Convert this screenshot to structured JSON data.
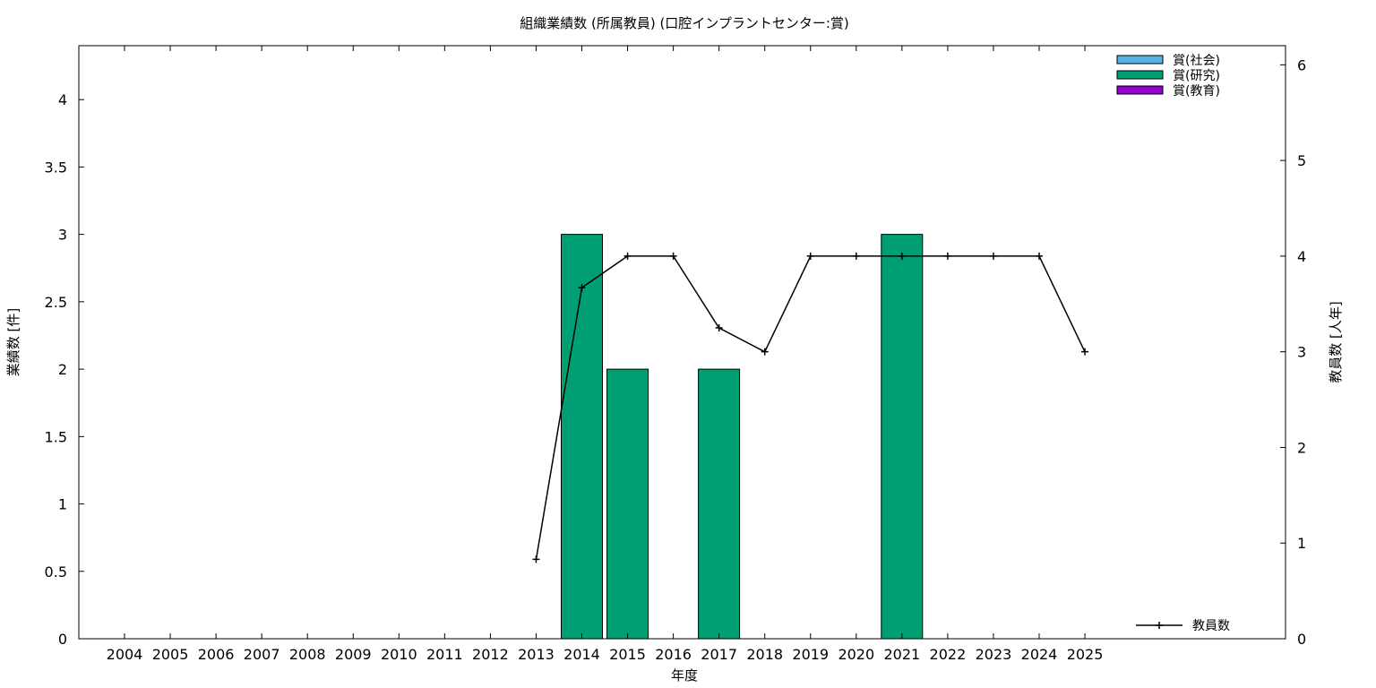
{
  "chart_data": {
    "type": "bar",
    "title": "組織業績数 (所属教員) (口腔インプラントセンター:賞)",
    "xlabel": "年度",
    "ylabel": "業績数 [件]",
    "y2label": "教員数 [人年]",
    "categories": [
      "2004",
      "2005",
      "2006",
      "2007",
      "2008",
      "2009",
      "2010",
      "2011",
      "2012",
      "2013",
      "2014",
      "2015",
      "2016",
      "2017",
      "2018",
      "2019",
      "2020",
      "2021",
      "2022",
      "2023",
      "2024",
      "2025"
    ],
    "ylim": [
      0,
      4.4
    ],
    "yticks": [
      0,
      0.5,
      1,
      1.5,
      2,
      2.5,
      3,
      3.5,
      4
    ],
    "ytick_labels": [
      "0",
      "0.5",
      "1",
      "1.5",
      "2",
      "2.5",
      "3",
      "3.5",
      "4"
    ],
    "y2lim": [
      0,
      6.2
    ],
    "y2ticks": [
      0,
      1,
      2,
      3,
      4,
      5,
      6
    ],
    "y2tick_labels": [
      "0",
      "1",
      "2",
      "3",
      "4",
      "5",
      "6"
    ],
    "grid": false,
    "legend_placement": "top-right",
    "bar_series": [
      {
        "name": "賞(社会)",
        "color": "#56b4e9",
        "values": [
          0,
          0,
          0,
          0,
          0,
          0,
          0,
          0,
          0,
          0,
          0,
          0,
          0,
          0,
          0,
          0,
          0,
          0,
          0,
          0,
          0,
          0
        ]
      },
      {
        "name": "賞(研究)",
        "color": "#009e73",
        "values": [
          0,
          0,
          0,
          0,
          0,
          0,
          0,
          0,
          0,
          0,
          3,
          2,
          0,
          2,
          0,
          0,
          0,
          3,
          0,
          0,
          0,
          0
        ]
      },
      {
        "name": "賞(教育)",
        "color": "#9400d3",
        "values": [
          0,
          0,
          0,
          0,
          0,
          0,
          0,
          0,
          0,
          0,
          0,
          0,
          0,
          0,
          0,
          0,
          0,
          0,
          0,
          0,
          0,
          0
        ]
      }
    ],
    "line_series": {
      "name": "教員数",
      "color": "#000000",
      "axis": "right",
      "legend_placement": "bottom-right",
      "x": [
        "2013",
        "2014",
        "2015",
        "2016",
        "2017",
        "2018",
        "2019",
        "2020",
        "2021",
        "2022",
        "2023",
        "2024",
        "2025"
      ],
      "values": [
        0.83,
        3.67,
        4,
        4,
        3.25,
        3,
        4,
        4,
        4,
        4,
        4,
        4,
        3
      ]
    }
  }
}
